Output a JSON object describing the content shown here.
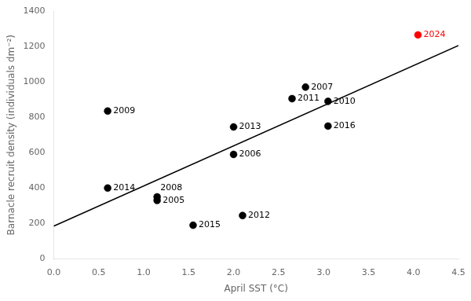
{
  "chart_data": {
    "type": "scatter",
    "xlabel": "April SST (°C)",
    "ylabel": "Barnacle recruit density (individuals dm⁻²)",
    "xlim": [
      0,
      4.5
    ],
    "ylim": [
      0,
      1400
    ],
    "xticks": [
      {
        "value": 0,
        "label": "0.0"
      },
      0.5,
      {
        "value": 1.0,
        "label": "1.0"
      },
      1.5,
      {
        "value": 2.0,
        "label": "2.0"
      },
      2.5,
      {
        "value": 3.0,
        "label": "3.0"
      },
      3.5,
      {
        "value": 4.0,
        "label": "4.0"
      },
      4.5
    ],
    "yticks": [
      0,
      200,
      400,
      600,
      800,
      1000,
      1200,
      1400
    ],
    "grid": false,
    "series": [
      {
        "type": "scatter",
        "marker": "circle",
        "x": [
          0.6,
          0.6,
          1.15,
          1.15,
          1.55,
          2.0,
          2.0,
          2.1,
          2.65,
          2.8,
          3.05,
          3.05,
          4.05
        ],
        "values": [
          400,
          835,
          330,
          350,
          190,
          590,
          745,
          245,
          905,
          970,
          750,
          890,
          1265
        ],
        "labels": [
          "2014",
          "2009",
          "2005",
          "2008",
          "2015",
          "2006",
          "2013",
          "2012",
          "2011",
          "2007",
          "2016",
          "2010",
          "2024"
        ],
        "colors": [
          "black",
          "black",
          "black",
          "black",
          "black",
          "black",
          "black",
          "black",
          "black",
          "black",
          "black",
          "black",
          "red"
        ]
      },
      {
        "type": "line",
        "line_style": "solid",
        "color": "black",
        "x": [
          0,
          4.5
        ],
        "values": [
          185,
          1205
        ]
      }
    ]
  }
}
